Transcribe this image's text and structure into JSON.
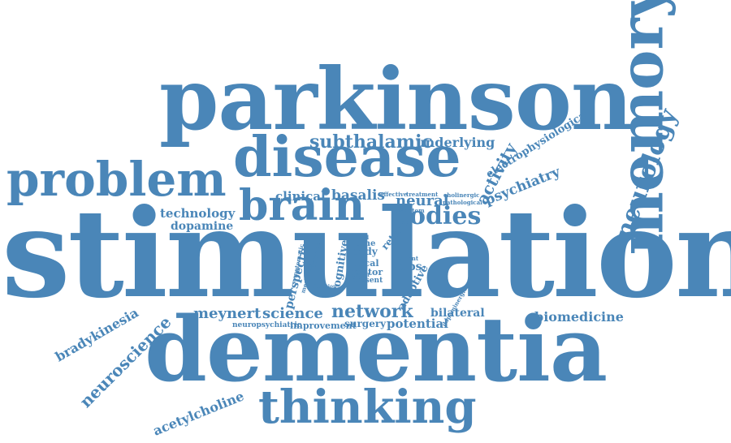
{
  "accent_color": "#4a86b8",
  "background_color": "#ffffff",
  "words": [
    {
      "key": "stimulation",
      "text": "stimulation"
    },
    {
      "key": "dementia",
      "text": "dementia"
    },
    {
      "key": "parkinson",
      "text": "parkinson"
    },
    {
      "key": "disease",
      "text": "disease"
    },
    {
      "key": "memory",
      "text": "memory"
    },
    {
      "key": "problem",
      "text": "problem"
    },
    {
      "key": "brain",
      "text": "brain"
    },
    {
      "key": "thinking",
      "text": "thinking"
    },
    {
      "key": "neurology",
      "text": "neurology"
    },
    {
      "key": "bodies",
      "text": "bodies"
    },
    {
      "key": "subthalamic",
      "text": "subthalamic"
    },
    {
      "key": "underlying",
      "text": "underlying"
    },
    {
      "key": "activity",
      "text": "activity"
    },
    {
      "key": "electrophysiological",
      "text": "electrophysiological"
    },
    {
      "key": "psychiatry",
      "text": "psychiatry"
    },
    {
      "key": "clinical",
      "text": "clinical"
    },
    {
      "key": "basalis",
      "text": "basalis"
    },
    {
      "key": "effective",
      "text": "effective"
    },
    {
      "key": "treatment",
      "text": "treatment"
    },
    {
      "key": "cholinergic",
      "text": "cholinergic"
    },
    {
      "key": "pathological",
      "text": "pathological"
    },
    {
      "key": "neural",
      "text": "neural"
    },
    {
      "key": "symptom",
      "text": "symptom"
    },
    {
      "key": "technology",
      "text": "technology"
    },
    {
      "key": "dopamine",
      "text": "dopamine"
    },
    {
      "key": "time",
      "text": "time"
    },
    {
      "key": "body",
      "text": "body"
    },
    {
      "key": "return",
      "text": "return"
    },
    {
      "key": "local",
      "text": "local"
    },
    {
      "key": "motor",
      "text": "motor"
    },
    {
      "key": "adbs",
      "text": "adbs"
    },
    {
      "key": "field",
      "text": "field"
    },
    {
      "key": "patient",
      "text": "patient"
    },
    {
      "key": "deficit",
      "text": "deficit"
    },
    {
      "key": "present",
      "text": "present"
    },
    {
      "key": "perspective",
      "text": "perspective"
    },
    {
      "key": "improve",
      "text": "improve"
    },
    {
      "key": "cognitive",
      "text": "cognitive"
    },
    {
      "key": "symptomatic",
      "text": "symptomatic"
    },
    {
      "key": "mechanism",
      "text": "mechanism"
    },
    {
      "key": "function",
      "text": "function"
    },
    {
      "key": "adaptive",
      "text": "adaptive"
    },
    {
      "key": "meynert",
      "text": "meynert"
    },
    {
      "key": "science",
      "text": "science"
    },
    {
      "key": "network",
      "text": "network"
    },
    {
      "key": "bilateral",
      "text": "bilateral"
    },
    {
      "key": "biomedicine",
      "text": "biomedicine"
    },
    {
      "key": "dopaminergic",
      "text": "dopaminergic"
    },
    {
      "key": "neuropsychiatric",
      "text": "neuropsychiatric"
    },
    {
      "key": "improvement",
      "text": "improvement"
    },
    {
      "key": "surgery",
      "text": "surgery"
    },
    {
      "key": "potential",
      "text": "potential"
    },
    {
      "key": "bradykinesia",
      "text": "bradykinesia"
    },
    {
      "key": "neuroscience",
      "text": "neuroscience"
    },
    {
      "key": "acetylcholine",
      "text": "acetylcholine"
    }
  ]
}
